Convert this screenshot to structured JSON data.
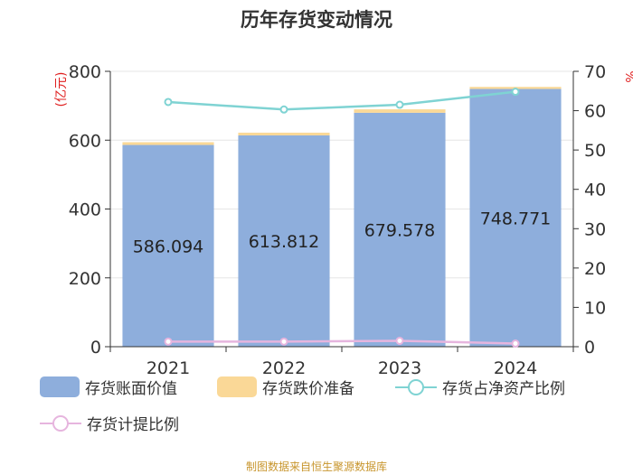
{
  "title": "历年存货变动情况",
  "source_note": "制图数据来自恒生聚源数据库",
  "colors": {
    "book_value": "#8eaedc",
    "impairment": "#fad897",
    "net_asset_ratio": "#7fd3d3",
    "provision_ratio": "#e6b5de",
    "axis_label_red": "#e02020"
  },
  "chart_data": {
    "type": "bar",
    "categories": [
      "2021",
      "2022",
      "2023",
      "2024"
    ],
    "y_left": {
      "label": "(亿元)",
      "range": [
        0,
        800
      ],
      "ticks": [
        0,
        200,
        400,
        600,
        800
      ]
    },
    "y_right": {
      "label": "%",
      "range": [
        0,
        70
      ],
      "ticks": [
        0,
        10,
        20,
        30,
        40,
        50,
        60,
        70
      ]
    },
    "series": [
      {
        "name": "存货账面价值",
        "kind": "bar",
        "axis": "left",
        "stack": "inv",
        "values": [
          586.094,
          613.812,
          679.578,
          748.771
        ],
        "labels": [
          "586.094",
          "613.812",
          "679.578",
          "748.771"
        ]
      },
      {
        "name": "存货跌价准备",
        "kind": "bar",
        "axis": "left",
        "stack": "inv",
        "values": [
          8,
          8,
          10,
          6
        ]
      },
      {
        "name": "存货占净资产比例",
        "kind": "line",
        "axis": "right",
        "values": [
          62.2,
          60.3,
          61.5,
          64.8
        ]
      },
      {
        "name": "存货计提比例",
        "kind": "line",
        "axis": "right",
        "values": [
          1.3,
          1.3,
          1.5,
          0.8
        ]
      }
    ],
    "legend_position": "bottom",
    "grid": true
  }
}
